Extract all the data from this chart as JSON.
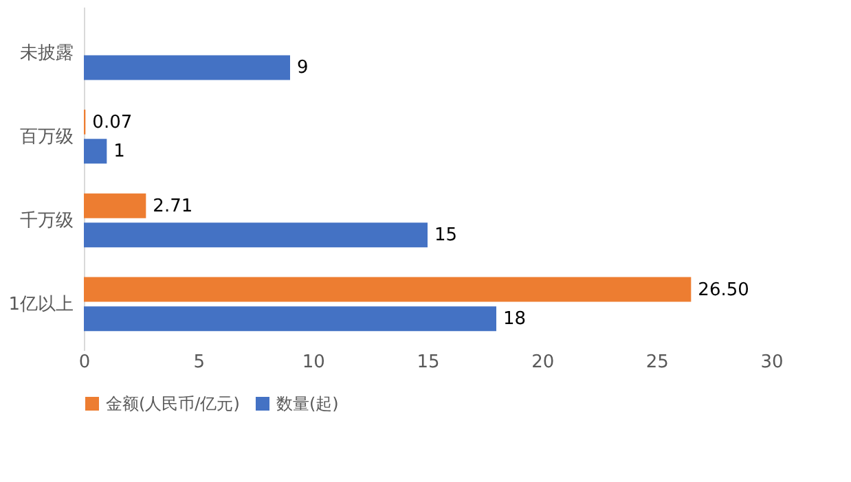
{
  "chart_data": {
    "type": "bar",
    "orientation": "horizontal",
    "categories": [
      "未披露",
      "百万级",
      "千万级",
      "1亿以上"
    ],
    "series": [
      {
        "name": "金额(人民币/亿元)",
        "color": "#ed7d31",
        "values": [
          null,
          0.07,
          2.71,
          26.5
        ],
        "value_labels": [
          null,
          "0.07",
          "2.71",
          "26.50"
        ]
      },
      {
        "name": "数量(起)",
        "color": "#4472c4",
        "values": [
          9,
          1,
          15,
          18
        ],
        "value_labels": [
          "9",
          "1",
          "15",
          "18"
        ]
      }
    ],
    "xlim": [
      0,
      30
    ],
    "xticks": [
      0,
      5,
      10,
      15,
      20,
      25,
      30
    ],
    "grid": false,
    "legend": "bottom"
  }
}
